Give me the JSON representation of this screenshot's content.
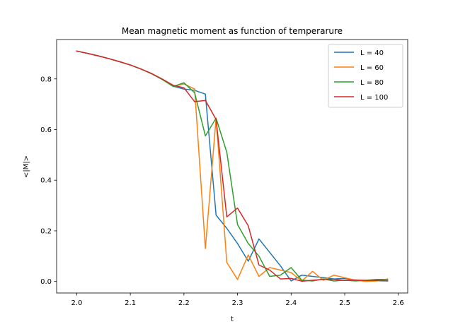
{
  "chart_data": {
    "type": "line",
    "title": "Mean magnetic moment as function of temperarure",
    "xlabel": "t",
    "ylabel": "<|M|>",
    "xlim": [
      1.9625,
      2.6175
    ],
    "ylim": [
      -0.0455,
      0.9555
    ],
    "xticks": [
      2.0,
      2.1,
      2.2,
      2.3,
      2.4,
      2.5,
      2.6
    ],
    "xtick_labels": [
      "2.0",
      "2.1",
      "2.2",
      "2.3",
      "2.4",
      "2.5",
      "2.6"
    ],
    "yticks": [
      0.0,
      0.2,
      0.4,
      0.6,
      0.8
    ],
    "ytick_labels": [
      "0.0",
      "0.2",
      "0.4",
      "0.6",
      "0.8"
    ],
    "grid": false,
    "legend_position": "top-right",
    "x": [
      2.0,
      2.02,
      2.04,
      2.06,
      2.08,
      2.1,
      2.12,
      2.14,
      2.16,
      2.18,
      2.2,
      2.22,
      2.24,
      2.26,
      2.28,
      2.3,
      2.32,
      2.34,
      2.36,
      2.38,
      2.4,
      2.42,
      2.44,
      2.46,
      2.48,
      2.5,
      2.52,
      2.54,
      2.56,
      2.58
    ],
    "series": [
      {
        "name": "L = 40",
        "color": "#1f77b4",
        "values": [
          0.91,
          0.901,
          0.891,
          0.88,
          0.868,
          0.855,
          0.839,
          0.82,
          0.798,
          0.771,
          0.76,
          0.755,
          0.74,
          0.262,
          0.21,
          0.15,
          0.08,
          0.168,
          0.115,
          0.062,
          0.002,
          0.025,
          0.02,
          0.015,
          0.01,
          0.012,
          0.005,
          0.004,
          0.003,
          0.002
        ]
      },
      {
        "name": "L = 60",
        "color": "#ff7f0e",
        "values": [
          0.91,
          0.901,
          0.891,
          0.88,
          0.868,
          0.855,
          0.839,
          0.821,
          0.799,
          0.772,
          0.78,
          0.76,
          0.13,
          0.645,
          0.075,
          0.008,
          0.105,
          0.02,
          0.055,
          0.045,
          0.035,
          0.002,
          0.04,
          0.005,
          0.025,
          0.015,
          0.005,
          0.0,
          0.002,
          0.01
        ]
      },
      {
        "name": "L = 80",
        "color": "#2ca02c",
        "values": [
          0.91,
          0.901,
          0.891,
          0.88,
          0.868,
          0.855,
          0.839,
          0.82,
          0.797,
          0.77,
          0.785,
          0.745,
          0.575,
          0.645,
          0.51,
          0.225,
          0.15,
          0.1,
          0.02,
          0.025,
          0.055,
          0.005,
          0.002,
          0.01,
          0.002,
          0.005,
          0.002,
          0.005,
          0.008,
          0.008
        ]
      },
      {
        "name": "L = 100",
        "color": "#d62728",
        "values": [
          0.91,
          0.901,
          0.891,
          0.88,
          0.868,
          0.855,
          0.839,
          0.821,
          0.799,
          0.775,
          0.765,
          0.71,
          0.715,
          0.64,
          0.255,
          0.29,
          0.22,
          0.065,
          0.045,
          0.01,
          0.012,
          0.001,
          0.005,
          0.008,
          0.008,
          0.004,
          0.006,
          0.004,
          0.004,
          0.003
        ]
      }
    ]
  }
}
